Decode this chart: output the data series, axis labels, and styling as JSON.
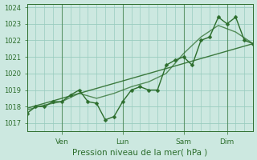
{
  "xlabel": "Pression niveau de la mer( hPa )",
  "background_color": "#cce8e0",
  "grid_color": "#99ccbf",
  "line_color": "#2d6e2d",
  "ylim": [
    1016.5,
    1024.2
  ],
  "yticks": [
    1017,
    1018,
    1019,
    1020,
    1021,
    1022,
    1023,
    1024
  ],
  "x_tick_labels": [
    "Ven",
    "Lun",
    "Sam",
    "Dim"
  ],
  "x_tick_positions": [
    8,
    22,
    36,
    46
  ],
  "vline_positions": [
    8,
    22,
    36,
    46
  ],
  "xlim": [
    0,
    52
  ],
  "forecast_x": [
    0,
    2,
    4,
    6,
    8,
    10,
    12,
    14,
    16,
    18,
    20,
    22,
    24,
    26,
    28,
    30,
    32,
    34,
    36,
    38,
    40,
    42,
    44,
    46,
    48,
    50,
    52
  ],
  "forecast_y": [
    1017.6,
    1018.0,
    1018.0,
    1018.3,
    1018.3,
    1018.7,
    1019.0,
    1018.3,
    1018.2,
    1017.2,
    1017.4,
    1018.3,
    1019.0,
    1019.2,
    1019.0,
    1019.0,
    1020.5,
    1020.8,
    1021.0,
    1020.5,
    1022.0,
    1022.2,
    1023.4,
    1023.0,
    1023.4,
    1022.0,
    1021.8
  ],
  "smooth_x": [
    0,
    4,
    8,
    12,
    16,
    20,
    24,
    28,
    32,
    36,
    40,
    44,
    48,
    52
  ],
  "smooth_y": [
    1017.8,
    1018.1,
    1018.3,
    1018.8,
    1018.5,
    1018.8,
    1019.2,
    1019.5,
    1020.0,
    1021.2,
    1022.2,
    1022.9,
    1022.5,
    1021.8
  ],
  "trend_x": [
    0,
    52
  ],
  "trend_y": [
    1017.9,
    1021.8
  ],
  "marker_size": 2.5,
  "linewidth": 1.0,
  "trend_linewidth": 1.0
}
